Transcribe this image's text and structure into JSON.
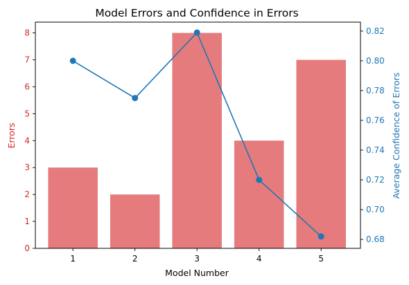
{
  "chart_data": {
    "type": "bar",
    "title": "Model Errors and Confidence in Errors",
    "xlabel": "Model Number",
    "categories": [
      "1",
      "2",
      "3",
      "4",
      "5"
    ],
    "axes": {
      "left": {
        "label": "Errors",
        "ylim": [
          0,
          8.4
        ],
        "ticks": [
          0,
          1,
          2,
          3,
          4,
          5,
          6,
          7,
          8
        ],
        "color": "#d62728"
      },
      "right": {
        "label": "Average Confidence of Errors",
        "ylim": [
          0.674,
          0.826
        ],
        "ticks": [
          "0.68",
          "0.70",
          "0.72",
          "0.74",
          "0.76",
          "0.78",
          "0.80",
          "0.82"
        ],
        "color": "#1f77b4"
      }
    },
    "series": [
      {
        "type": "bar",
        "axis": "left",
        "values": [
          3,
          2,
          8,
          4,
          7
        ],
        "color": "#e57b7c"
      },
      {
        "type": "line",
        "axis": "right",
        "values": [
          0.8,
          0.775,
          0.819,
          0.72,
          0.682
        ],
        "color": "#1f77b4"
      }
    ],
    "grid": false,
    "legend": "none"
  }
}
